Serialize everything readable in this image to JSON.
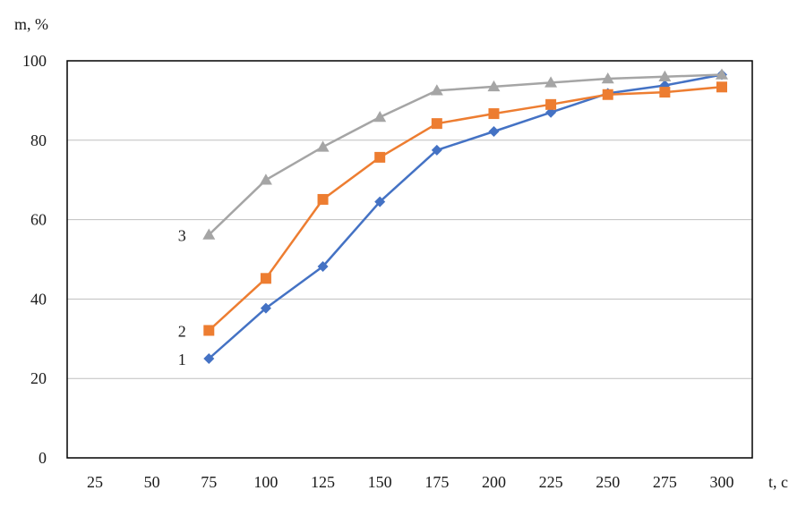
{
  "chart_data": {
    "type": "line",
    "ylabel": "m, %",
    "xlabel": "t, c",
    "x": [
      25,
      50,
      75,
      100,
      125,
      150,
      175,
      200,
      225,
      250,
      275,
      300
    ],
    "x_tick_labels": [
      "25",
      "50",
      "75",
      "100",
      "125",
      "150",
      "175",
      "200",
      "225",
      "250",
      "275",
      "300"
    ],
    "ylim": [
      0,
      100
    ],
    "y_ticks": [
      0,
      20,
      40,
      60,
      80,
      100
    ],
    "y_tick_labels": [
      "0",
      "20",
      "40",
      "60",
      "80",
      "100"
    ],
    "grid": "horizontal",
    "legend": "none",
    "series": [
      {
        "label": "1",
        "color": "#4472C4",
        "marker": "diamond",
        "x": [
          75,
          100,
          125,
          150,
          175,
          200,
          225,
          250,
          275,
          300
        ],
        "y": [
          25,
          37.7,
          48.2,
          64.5,
          77.5,
          82.2,
          87,
          91.8,
          93.8,
          96.5
        ]
      },
      {
        "label": "2",
        "color": "#ED7D31",
        "marker": "square",
        "x": [
          75,
          100,
          125,
          150,
          175,
          200,
          225,
          250,
          275,
          300
        ],
        "y": [
          32.1,
          45.2,
          65.1,
          75.7,
          84.2,
          86.7,
          89,
          91.5,
          92.1,
          93.4
        ]
      },
      {
        "label": "3",
        "color": "#A5A5A5",
        "marker": "triangle",
        "x": [
          75,
          100,
          125,
          150,
          175,
          200,
          225,
          250,
          275,
          300
        ],
        "y": [
          56.2,
          70,
          78.3,
          85.8,
          92.5,
          93.5,
          94.5,
          95.5,
          96,
          96.5
        ]
      }
    ]
  }
}
